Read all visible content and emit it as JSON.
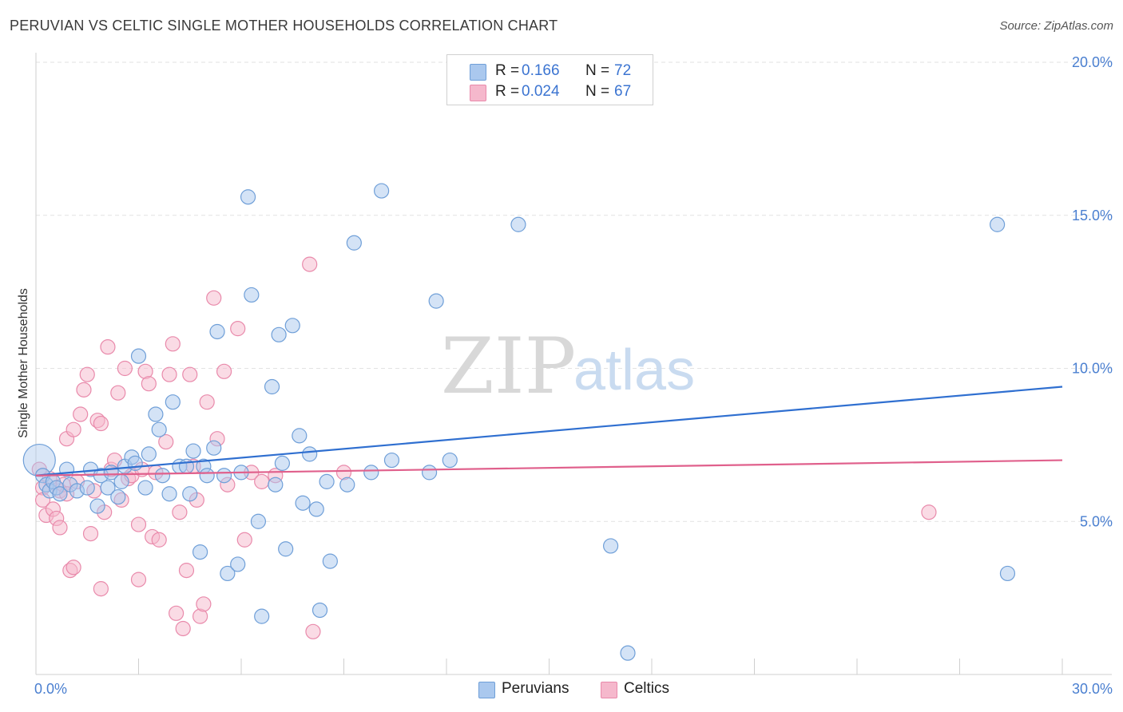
{
  "header": {
    "title": "PERUVIAN VS CELTIC SINGLE MOTHER HOUSEHOLDS CORRELATION CHART",
    "source": "Source: ZipAtlas.com"
  },
  "watermark": {
    "zip": "ZIP",
    "atlas": "atlas"
  },
  "legend": {
    "rows": [
      {
        "r_label": "R =",
        "r_value": "0.166",
        "n_label": "N =",
        "n_value": "72"
      },
      {
        "r_label": "R =",
        "r_value": "0.024",
        "n_label": "N =",
        "n_value": "67"
      }
    ]
  },
  "bottom_legend": [
    {
      "label": "Peruvians"
    },
    {
      "label": "Celtics"
    }
  ],
  "colors": {
    "peruvians_fill": "#aac8ee",
    "peruvians_stroke": "#6f9fd8",
    "peruvians_line": "#2f6fd0",
    "celtics_fill": "#f5b8cc",
    "celtics_stroke": "#e98aab",
    "celtics_line": "#e0608c",
    "tick": "#4a7fd0",
    "grid": "#e2e2e2"
  },
  "chart_data": {
    "type": "scatter",
    "title": "PERUVIAN VS CELTIC SINGLE MOTHER HOUSEHOLDS CORRELATION CHART",
    "xlabel": "",
    "ylabel": "Single Mother Households",
    "xlim": [
      0,
      30
    ],
    "ylim": [
      0,
      20
    ],
    "x_tick_labels": [
      "0.0%",
      "30.0%"
    ],
    "y_ticks": [
      {
        "value": 5,
        "label": "5.0%"
      },
      {
        "value": 10,
        "label": "10.0%"
      },
      {
        "value": 15,
        "label": "15.0%"
      },
      {
        "value": 20,
        "label": "20.0%"
      }
    ],
    "series": [
      {
        "name": "Peruvians",
        "r": 0.166,
        "n": 72,
        "trend": {
          "x": [
            0,
            30
          ],
          "y": [
            6.5,
            9.4
          ]
        },
        "points": [
          [
            0.1,
            7.0
          ],
          [
            0.2,
            6.5
          ],
          [
            0.3,
            6.2
          ],
          [
            0.4,
            6.0
          ],
          [
            0.5,
            6.3
          ],
          [
            0.6,
            6.1
          ],
          [
            0.7,
            5.9
          ],
          [
            0.9,
            6.7
          ],
          [
            1.0,
            6.2
          ],
          [
            1.2,
            6.0
          ],
          [
            1.5,
            6.1
          ],
          [
            1.6,
            6.7
          ],
          [
            1.8,
            5.5
          ],
          [
            1.9,
            6.5
          ],
          [
            2.1,
            6.1
          ],
          [
            2.2,
            6.6
          ],
          [
            2.4,
            5.8
          ],
          [
            2.5,
            6.3
          ],
          [
            2.6,
            6.8
          ],
          [
            2.8,
            7.1
          ],
          [
            2.9,
            6.9
          ],
          [
            3.0,
            10.4
          ],
          [
            3.2,
            6.1
          ],
          [
            3.3,
            7.2
          ],
          [
            3.5,
            8.5
          ],
          [
            3.6,
            8.0
          ],
          [
            3.7,
            6.5
          ],
          [
            3.9,
            5.9
          ],
          [
            4.0,
            8.9
          ],
          [
            4.2,
            6.8
          ],
          [
            4.4,
            6.8
          ],
          [
            4.5,
            5.9
          ],
          [
            4.6,
            7.3
          ],
          [
            4.8,
            4.0
          ],
          [
            4.9,
            6.8
          ],
          [
            5.0,
            6.5
          ],
          [
            5.2,
            7.4
          ],
          [
            5.3,
            11.2
          ],
          [
            5.5,
            6.5
          ],
          [
            5.6,
            3.3
          ],
          [
            5.9,
            3.6
          ],
          [
            6.0,
            6.6
          ],
          [
            6.2,
            15.6
          ],
          [
            6.3,
            12.4
          ],
          [
            6.5,
            5.0
          ],
          [
            6.6,
            1.9
          ],
          [
            6.9,
            9.4
          ],
          [
            7.0,
            6.2
          ],
          [
            7.1,
            11.1
          ],
          [
            7.2,
            6.9
          ],
          [
            7.3,
            4.1
          ],
          [
            7.5,
            11.4
          ],
          [
            7.7,
            7.8
          ],
          [
            7.8,
            5.6
          ],
          [
            8.0,
            7.2
          ],
          [
            8.2,
            5.4
          ],
          [
            8.3,
            2.1
          ],
          [
            8.5,
            6.3
          ],
          [
            8.6,
            3.7
          ],
          [
            9.1,
            6.2
          ],
          [
            9.3,
            14.1
          ],
          [
            9.8,
            6.6
          ],
          [
            10.1,
            15.8
          ],
          [
            10.4,
            7.0
          ],
          [
            11.5,
            6.6
          ],
          [
            11.7,
            12.2
          ],
          [
            12.1,
            7.0
          ],
          [
            14.1,
            14.7
          ],
          [
            16.8,
            4.2
          ],
          [
            17.3,
            0.7
          ],
          [
            28.1,
            14.7
          ],
          [
            28.4,
            3.3
          ]
        ]
      },
      {
        "name": "Celtics",
        "r": 0.024,
        "n": 67,
        "trend": {
          "x": [
            0,
            30
          ],
          "y": [
            6.5,
            7.0
          ]
        },
        "points": [
          [
            0.1,
            6.7
          ],
          [
            0.2,
            6.1
          ],
          [
            0.2,
            5.7
          ],
          [
            0.3,
            5.2
          ],
          [
            0.4,
            6.4
          ],
          [
            0.5,
            5.4
          ],
          [
            0.6,
            5.1
          ],
          [
            0.7,
            4.8
          ],
          [
            0.7,
            6.0
          ],
          [
            0.8,
            6.2
          ],
          [
            0.9,
            5.9
          ],
          [
            0.9,
            7.7
          ],
          [
            1.0,
            3.4
          ],
          [
            1.1,
            3.5
          ],
          [
            1.1,
            8.0
          ],
          [
            1.2,
            6.3
          ],
          [
            1.3,
            8.5
          ],
          [
            1.4,
            9.3
          ],
          [
            1.5,
            9.8
          ],
          [
            1.6,
            4.6
          ],
          [
            1.7,
            6.0
          ],
          [
            1.8,
            8.3
          ],
          [
            1.9,
            8.2
          ],
          [
            1.9,
            2.8
          ],
          [
            2.0,
            5.3
          ],
          [
            2.1,
            10.7
          ],
          [
            2.2,
            6.7
          ],
          [
            2.3,
            7.0
          ],
          [
            2.4,
            9.2
          ],
          [
            2.5,
            5.7
          ],
          [
            2.6,
            10.0
          ],
          [
            2.7,
            6.4
          ],
          [
            2.8,
            6.5
          ],
          [
            3.0,
            4.9
          ],
          [
            3.0,
            3.1
          ],
          [
            3.1,
            6.7
          ],
          [
            3.2,
            9.9
          ],
          [
            3.3,
            9.5
          ],
          [
            3.4,
            4.5
          ],
          [
            3.5,
            6.6
          ],
          [
            3.6,
            4.4
          ],
          [
            3.8,
            7.6
          ],
          [
            3.9,
            9.8
          ],
          [
            4.0,
            10.8
          ],
          [
            4.1,
            2.0
          ],
          [
            4.2,
            5.3
          ],
          [
            4.3,
            1.5
          ],
          [
            4.4,
            3.4
          ],
          [
            4.5,
            9.8
          ],
          [
            4.6,
            6.8
          ],
          [
            4.7,
            5.7
          ],
          [
            4.8,
            1.9
          ],
          [
            4.9,
            2.3
          ],
          [
            5.0,
            8.9
          ],
          [
            5.2,
            12.3
          ],
          [
            5.3,
            7.7
          ],
          [
            5.5,
            9.9
          ],
          [
            5.6,
            6.2
          ],
          [
            5.9,
            11.3
          ],
          [
            6.1,
            4.4
          ],
          [
            6.3,
            6.6
          ],
          [
            6.6,
            6.3
          ],
          [
            7.0,
            6.5
          ],
          [
            8.0,
            13.4
          ],
          [
            8.1,
            1.4
          ],
          [
            9.0,
            6.6
          ],
          [
            26.1,
            5.3
          ]
        ]
      }
    ]
  }
}
